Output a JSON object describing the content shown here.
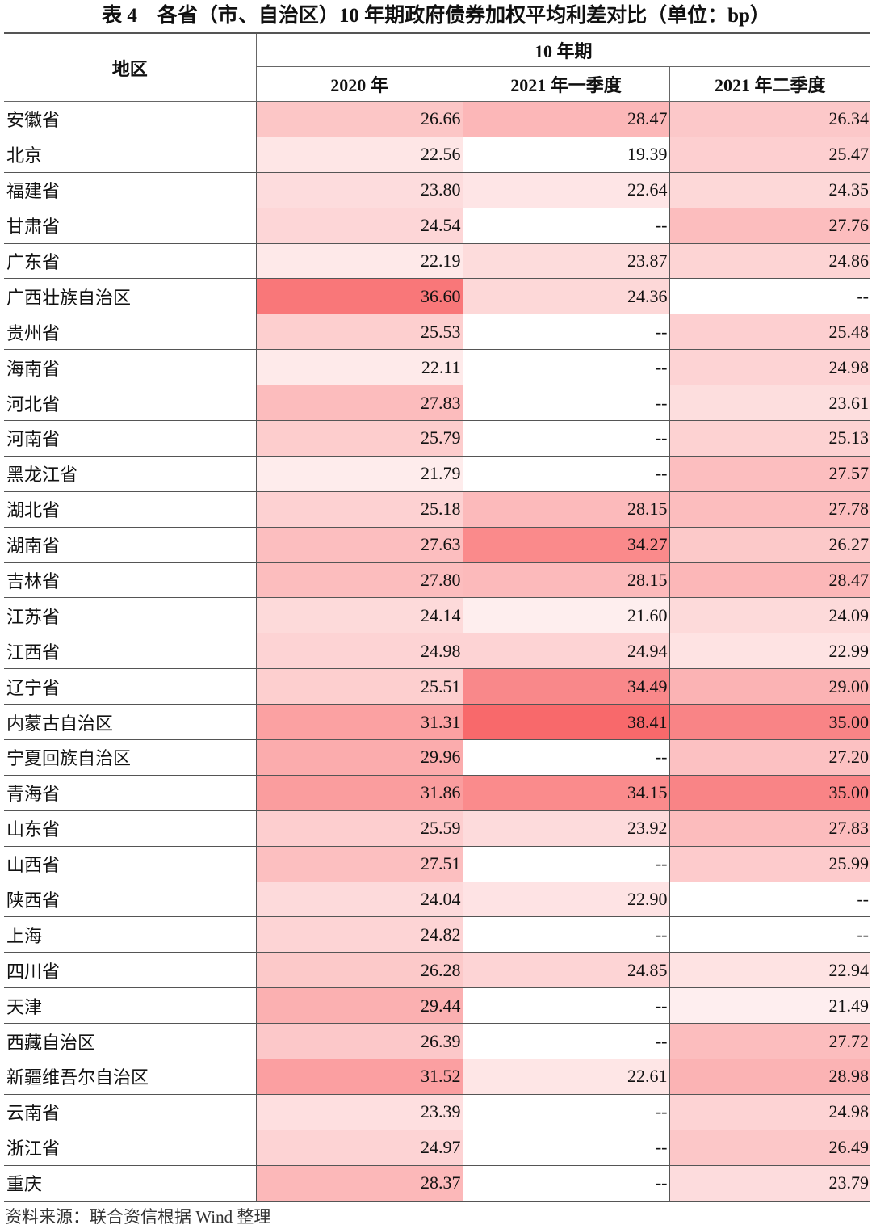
{
  "title": "表 4　各省（市、自治区）10 年期政府债券加权平均利差对比（单位：bp）",
  "header": {
    "region": "地区",
    "group": "10 年期",
    "columns": [
      "2020 年",
      "2021 年一季度",
      "2021 年二季度"
    ]
  },
  "color_scale": {
    "low": "#ffffff",
    "high": "#f8696b",
    "min": 19.39,
    "max": 38.41
  },
  "rows": [
    {
      "region": "安徽省",
      "values": [
        "26.66",
        "28.47",
        "26.34"
      ]
    },
    {
      "region": "北京",
      "values": [
        "22.56",
        "19.39",
        "25.47"
      ]
    },
    {
      "region": "福建省",
      "values": [
        "23.80",
        "22.64",
        "24.35"
      ]
    },
    {
      "region": "甘肃省",
      "values": [
        "24.54",
        "--",
        "27.76"
      ]
    },
    {
      "region": "广东省",
      "values": [
        "22.19",
        "23.87",
        "24.86"
      ]
    },
    {
      "region": "广西壮族自治区",
      "values": [
        "36.60",
        "24.36",
        "--"
      ]
    },
    {
      "region": "贵州省",
      "values": [
        "25.53",
        "--",
        "25.48"
      ]
    },
    {
      "region": "海南省",
      "values": [
        "22.11",
        "--",
        "24.98"
      ]
    },
    {
      "region": "河北省",
      "values": [
        "27.83",
        "--",
        "23.61"
      ]
    },
    {
      "region": "河南省",
      "values": [
        "25.79",
        "--",
        "25.13"
      ]
    },
    {
      "region": "黑龙江省",
      "values": [
        "21.79",
        "--",
        "27.57"
      ]
    },
    {
      "region": "湖北省",
      "values": [
        "25.18",
        "28.15",
        "27.78"
      ]
    },
    {
      "region": "湖南省",
      "values": [
        "27.63",
        "34.27",
        "26.27"
      ]
    },
    {
      "region": "吉林省",
      "values": [
        "27.80",
        "28.15",
        "28.47"
      ]
    },
    {
      "region": "江苏省",
      "values": [
        "24.14",
        "21.60",
        "24.09"
      ]
    },
    {
      "region": "江西省",
      "values": [
        "24.98",
        "24.94",
        "22.99"
      ]
    },
    {
      "region": "辽宁省",
      "values": [
        "25.51",
        "34.49",
        "29.00"
      ]
    },
    {
      "region": "内蒙古自治区",
      "values": [
        "31.31",
        "38.41",
        "35.00"
      ]
    },
    {
      "region": "宁夏回族自治区",
      "values": [
        "29.96",
        "--",
        "27.20"
      ]
    },
    {
      "region": "青海省",
      "values": [
        "31.86",
        "34.15",
        "35.00"
      ]
    },
    {
      "region": "山东省",
      "values": [
        "25.59",
        "23.92",
        "27.83"
      ]
    },
    {
      "region": "山西省",
      "values": [
        "27.51",
        "--",
        "25.99"
      ]
    },
    {
      "region": "陕西省",
      "values": [
        "24.04",
        "22.90",
        "--"
      ]
    },
    {
      "region": "上海",
      "values": [
        "24.82",
        "--",
        "--"
      ]
    },
    {
      "region": "四川省",
      "values": [
        "26.28",
        "24.85",
        "22.94"
      ]
    },
    {
      "region": "天津",
      "values": [
        "29.44",
        "--",
        "21.49"
      ]
    },
    {
      "region": "西藏自治区",
      "values": [
        "26.39",
        "--",
        "27.72"
      ]
    },
    {
      "region": "新疆维吾尔自治区",
      "values": [
        "31.52",
        "22.61",
        "28.98"
      ]
    },
    {
      "region": "云南省",
      "values": [
        "23.39",
        "--",
        "24.98"
      ]
    },
    {
      "region": "浙江省",
      "values": [
        "24.97",
        "--",
        "26.49"
      ]
    },
    {
      "region": "重庆",
      "values": [
        "28.37",
        "--",
        "23.79"
      ]
    }
  ],
  "footer": "资料来源：联合资信根据 Wind 整理"
}
